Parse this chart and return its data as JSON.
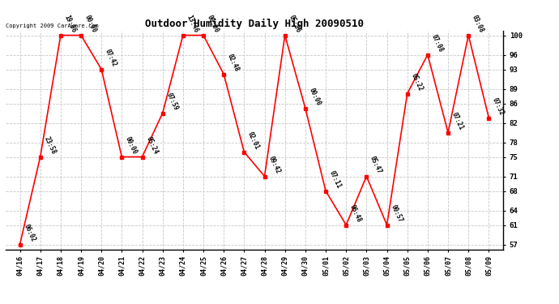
{
  "title": "Outdoor Humidity Daily High 20090510",
  "copyright": "Copyright 2009 CarAware.com",
  "background_color": "#ffffff",
  "grid_color": "#c8c8c8",
  "line_color": "#ff0000",
  "marker_color": "#ff0000",
  "text_color": "#000000",
  "ylim_min": 56,
  "ylim_max": 101,
  "yticks": [
    57,
    61,
    64,
    68,
    71,
    75,
    78,
    82,
    86,
    89,
    93,
    96,
    100
  ],
  "data_points": [
    {
      "date": "04/16",
      "x": 0,
      "value": 57,
      "label": "06:02"
    },
    {
      "date": "04/17",
      "x": 1,
      "value": 75,
      "label": "23:58"
    },
    {
      "date": "04/18",
      "x": 2,
      "value": 100,
      "label": "19:06"
    },
    {
      "date": "04/19",
      "x": 3,
      "value": 100,
      "label": "00:00"
    },
    {
      "date": "04/20",
      "x": 4,
      "value": 93,
      "label": "07:42"
    },
    {
      "date": "04/21",
      "x": 5,
      "value": 75,
      "label": "00:00"
    },
    {
      "date": "04/22",
      "x": 6,
      "value": 75,
      "label": "05:24"
    },
    {
      "date": "04/23",
      "x": 7,
      "value": 84,
      "label": "07:59"
    },
    {
      "date": "04/24",
      "x": 8,
      "value": 100,
      "label": "13:46"
    },
    {
      "date": "04/25",
      "x": 9,
      "value": 100,
      "label": "00:00"
    },
    {
      "date": "04/26",
      "x": 10,
      "value": 92,
      "label": "02:48"
    },
    {
      "date": "04/27",
      "x": 11,
      "value": 76,
      "label": "02:01"
    },
    {
      "date": "04/28",
      "x": 12,
      "value": 71,
      "label": "09:42"
    },
    {
      "date": "04/29",
      "x": 13,
      "value": 100,
      "label": "05:36"
    },
    {
      "date": "04/30",
      "x": 14,
      "value": 85,
      "label": "00:00"
    },
    {
      "date": "05/01",
      "x": 15,
      "value": 68,
      "label": "07:11"
    },
    {
      "date": "05/02",
      "x": 16,
      "value": 61,
      "label": "06:48"
    },
    {
      "date": "05/03",
      "x": 17,
      "value": 71,
      "label": "05:47"
    },
    {
      "date": "05/04",
      "x": 18,
      "value": 61,
      "label": "00:57"
    },
    {
      "date": "05/05",
      "x": 19,
      "value": 88,
      "label": "05:22"
    },
    {
      "date": "05/06",
      "x": 20,
      "value": 96,
      "label": "07:08"
    },
    {
      "date": "05/07",
      "x": 21,
      "value": 80,
      "label": "07:21"
    },
    {
      "date": "05/08",
      "x": 22,
      "value": 100,
      "label": "03:08"
    },
    {
      "date": "05/09",
      "x": 23,
      "value": 83,
      "label": "07:32"
    }
  ]
}
